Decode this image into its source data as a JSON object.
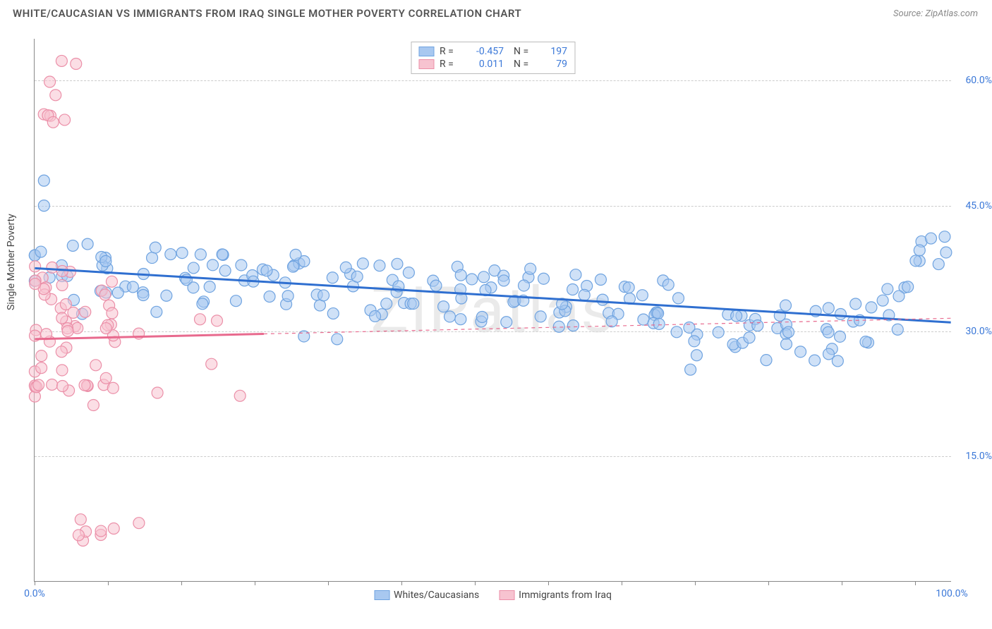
{
  "title": "WHITE/CAUCASIAN VS IMMIGRANTS FROM IRAQ SINGLE MOTHER POVERTY CORRELATION CHART",
  "source_prefix": "Source: ",
  "source": "ZipAtlas.com",
  "watermark": "ZIPatlas",
  "ylabel": "Single Mother Poverty",
  "chart": {
    "type": "scatter",
    "xlim": [
      0,
      100
    ],
    "ylim": [
      0,
      65
    ],
    "x_axis_label_left": "0.0%",
    "x_axis_label_right": "100.0%",
    "y_ticks": [
      15,
      30,
      45,
      60
    ],
    "y_tick_labels": [
      "15.0%",
      "30.0%",
      "45.0%",
      "60.0%"
    ],
    "x_minor_ticks": [
      0,
      8,
      16,
      24,
      32,
      40,
      48,
      56,
      64,
      72,
      80,
      88,
      96
    ],
    "background_color": "#ffffff",
    "grid_color": "#cccccc",
    "marker_radius": 8,
    "marker_stroke_width": 1.2,
    "line_width_solid": 3,
    "line_width_dash": 1.2,
    "series": [
      {
        "id": "blue",
        "label": "Whites/Caucasians",
        "R": "-0.457",
        "N": "197",
        "fill": "#a8c8f0",
        "stroke": "#6fa3e0",
        "line_color": "#2f6fd0",
        "trend": {
          "y_at_x0": 37.5,
          "y_at_x100": 31.0,
          "solid_until_x": 100
        }
      },
      {
        "id": "pink",
        "label": "Immigrants from Iraq",
        "R": "0.011",
        "N": "79",
        "fill": "#f7c3d0",
        "stroke": "#eb8fa8",
        "line_color": "#e86a8e",
        "trend": {
          "y_at_x0": 29.0,
          "y_at_x100": 31.5,
          "solid_until_x": 25
        }
      }
    ]
  }
}
